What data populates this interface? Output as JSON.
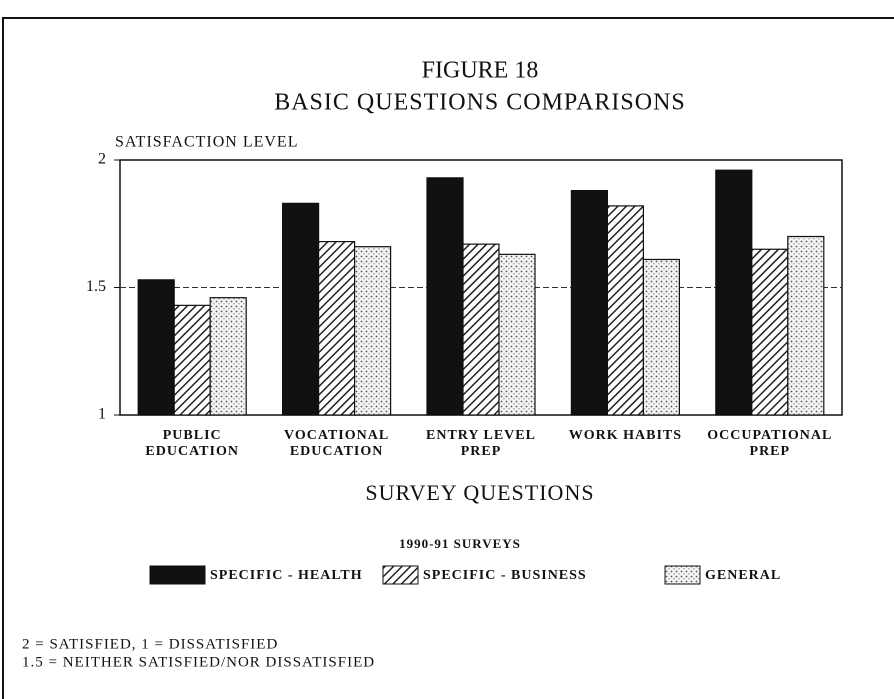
{
  "chart_data": {
    "type": "bar",
    "title": "FIGURE 18",
    "subtitle": "BASIC QUESTIONS COMPARISONS",
    "y_label": "SATISFACTION LEVEL",
    "x_label": "SURVEY QUESTIONS",
    "legend_title": "1990-91 SURVEYS",
    "legend_position": "bottom",
    "categories": [
      "PUBLIC\nEDUCATION",
      "VOCATIONAL\nEDUCATION",
      "ENTRY LEVEL\nPREP",
      "WORK HABITS",
      "OCCUPATIONAL\nPREP"
    ],
    "series": [
      {
        "name": "SPECIFIC - HEALTH",
        "color": "#111111",
        "pattern": "solid",
        "values": [
          1.53,
          1.83,
          1.93,
          1.88,
          1.96
        ]
      },
      {
        "name": "SPECIFIC - BUSINESS",
        "color": "#333333",
        "pattern": "hatch",
        "values": [
          1.43,
          1.68,
          1.67,
          1.82,
          1.65
        ]
      },
      {
        "name": "GENERAL",
        "color": "#666666",
        "pattern": "dots",
        "values": [
          1.46,
          1.66,
          1.63,
          1.61,
          1.7
        ]
      }
    ],
    "ylim": [
      1,
      2
    ],
    "yticks": [
      1,
      1.5,
      2
    ],
    "reference_line": 1.5,
    "notes": [
      "2 = SATISFIED, 1 = DISSATISFIED",
      "1.5 = NEITHER SATISFIED/NOR DISSATISFIED"
    ]
  }
}
